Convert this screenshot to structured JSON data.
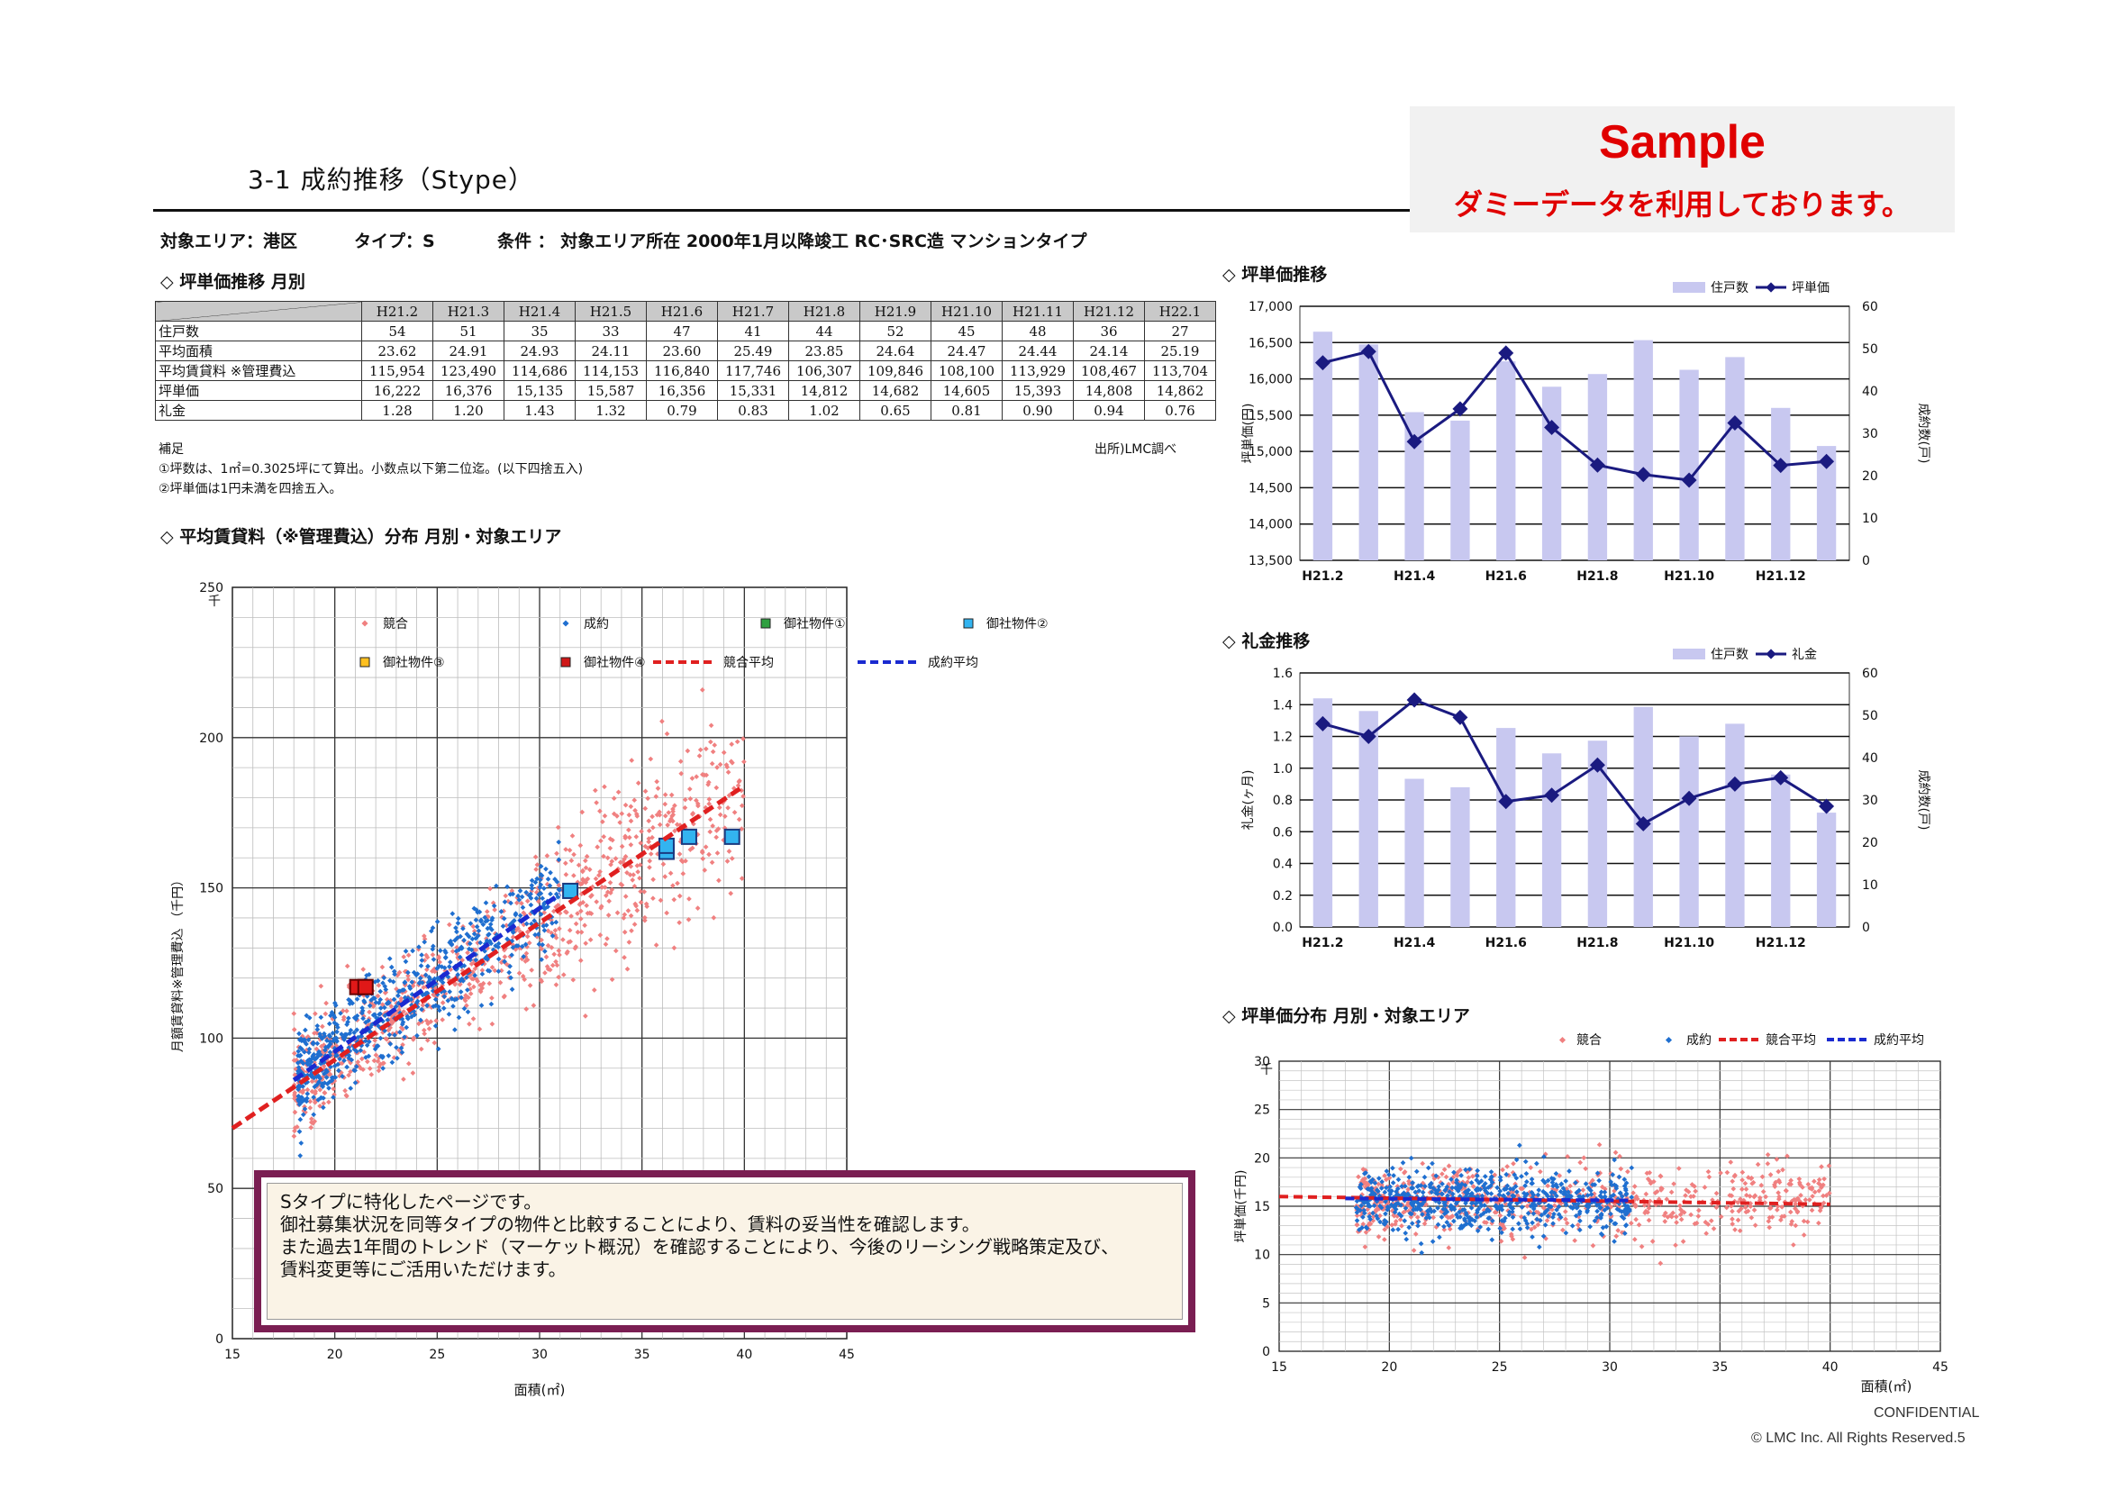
{
  "page": {
    "title": "3-1 成約推移（Stype）",
    "sample_label": "Sample",
    "sample_sub": "ダミーデータを利用しております。",
    "area": "対象エリア：港区",
    "type": "タイプ：S",
    "condition": "条件 ： 対象エリア所在 2000年1月以降竣工 RC･SRC造 マンションタイプ",
    "section_table": "◇ 坪単価推移 月別",
    "note_title": "補足",
    "note1": "①坪数は、1㎡=0.3025坪にて算出。小数点以下第二位迄。(以下四捨五入)",
    "note2": "②坪単価は1円未満を四捨五入。",
    "source": "出所)LMC調べ",
    "section_scatter": "◇ 平均賃貸料（※管理費込）分布 月別・対象エリア",
    "section_tsubo": "◇ 坪単価推移",
    "section_reikin": "◇ 礼金推移",
    "section_tsubo_dist": "◇ 坪単価分布 月別・対象エリア",
    "message": [
      "Sタイプに特化したページです。",
      "御社募集状況を同等タイプの物件と比較することにより、賃料の妥当性を確認します。",
      "また過去1年間のトレンド（マーケット概況）を確認することにより、今後のリーシング戦略策定及び、",
      "賃料変更等にご活用いただけます。"
    ],
    "confidential": "CONFIDENTIAL",
    "copyright": "© LMC Inc. All Rights Reserved.5"
  },
  "table": {
    "columns": [
      "H21.2",
      "H21.3",
      "H21.4",
      "H21.5",
      "H21.6",
      "H21.7",
      "H21.8",
      "H21.9",
      "H21.10",
      "H21.11",
      "H21.12",
      "H22.1"
    ],
    "rows": [
      {
        "label": "住戸数",
        "values": [
          "54",
          "51",
          "35",
          "33",
          "47",
          "41",
          "44",
          "52",
          "45",
          "48",
          "36",
          "27"
        ]
      },
      {
        "label": "平均面積",
        "values": [
          "23.62",
          "24.91",
          "24.93",
          "24.11",
          "23.60",
          "25.49",
          "23.85",
          "24.64",
          "24.47",
          "24.44",
          "24.14",
          "25.19"
        ]
      },
      {
        "label": "平均賃貸料 ※管理費込",
        "values": [
          "115,954",
          "123,490",
          "114,686",
          "114,153",
          "116,840",
          "117,746",
          "106,307",
          "109,846",
          "108,100",
          "113,929",
          "108,467",
          "113,704"
        ]
      },
      {
        "label": "坪単価",
        "values": [
          "16,222",
          "16,376",
          "15,135",
          "15,587",
          "16,356",
          "15,331",
          "14,812",
          "14,682",
          "14,605",
          "15,393",
          "14,808",
          "14,862"
        ]
      },
      {
        "label": "礼金",
        "values": [
          "1.28",
          "1.20",
          "1.43",
          "1.32",
          "0.79",
          "0.83",
          "1.02",
          "0.65",
          "0.81",
          "0.90",
          "0.94",
          "0.76"
        ]
      }
    ]
  },
  "chart_data": [
    {
      "id": "rent_scatter",
      "type": "scatter",
      "xlabel": "面積(㎡)",
      "ylabel": "月額賃貸料※管理費込 （千円）",
      "y_unit": "千",
      "xlim": [
        15,
        45
      ],
      "ylim": [
        0,
        250
      ],
      "x_ticks": [
        15,
        20,
        25,
        30,
        35,
        40,
        45
      ],
      "y_ticks": [
        0,
        50,
        100,
        150,
        200,
        250
      ],
      "grid": true,
      "legend": [
        "競合",
        "成約",
        "御社物件①",
        "御社物件②",
        "御社物件③",
        "御社物件④",
        "競合平均",
        "成約平均"
      ],
      "series": [
        {
          "name": "競合",
          "color": "#f08080",
          "points": "dense cloud (representative)"
        },
        {
          "name": "成約",
          "color": "#1f6fd0",
          "points": "dense cloud (representative)"
        },
        {
          "name": "御社物件②",
          "color": "#33b4f0",
          "points": [
            [
              31.5,
              149
            ],
            [
              36.2,
              162
            ],
            [
              36.2,
              164
            ],
            [
              37.3,
              167
            ],
            [
              39.4,
              167
            ]
          ]
        },
        {
          "name": "御社物件④",
          "color": "#e01818",
          "points": [
            [
              21.1,
              117
            ],
            [
              21.5,
              117
            ]
          ]
        },
        {
          "name": "競合平均",
          "color": "#e02020",
          "line": [
            [
              15,
              70
            ],
            [
              40,
              184
            ]
          ]
        },
        {
          "name": "成約平均",
          "color": "#1a2ad0",
          "line": [
            [
              18,
              86
            ],
            [
              31,
              148
            ]
          ]
        }
      ]
    },
    {
      "id": "tsubo_trend",
      "type": "bar",
      "categories": [
        "H21.2",
        "H21.3",
        "H21.4",
        "H21.5",
        "H21.6",
        "H21.7",
        "H21.8",
        "H21.9",
        "H21.10",
        "H21.11",
        "H21.12",
        "H22.1"
      ],
      "x_tick_labels": [
        "H21.2",
        "H21.4",
        "H21.6",
        "H21.8",
        "H21.10",
        "H21.12"
      ],
      "ylabel": "坪単価(円)",
      "y2label": "成約数(戸)",
      "ylim": [
        13500,
        17000
      ],
      "y_ticks": [
        "13,500",
        "14,000",
        "14,500",
        "15,000",
        "15,500",
        "16,000",
        "16,500",
        "17,000"
      ],
      "y2lim": [
        0,
        60
      ],
      "y2_ticks": [
        0,
        10,
        20,
        30,
        40,
        50,
        60
      ],
      "legend": [
        "住戸数",
        "坪単価"
      ],
      "series": [
        {
          "name": "住戸数",
          "axis": "right",
          "kind": "bar",
          "color": "#c8c8f0",
          "values": [
            54,
            51,
            35,
            33,
            47,
            41,
            44,
            52,
            45,
            48,
            36,
            27
          ]
        },
        {
          "name": "坪単価",
          "axis": "left",
          "kind": "line",
          "color": "#1a1a80",
          "values": [
            16222,
            16376,
            15135,
            15587,
            16356,
            15331,
            14812,
            14682,
            14605,
            15393,
            14808,
            14862
          ]
        }
      ]
    },
    {
      "id": "reikin_trend",
      "type": "bar",
      "categories": [
        "H21.2",
        "H21.3",
        "H21.4",
        "H21.5",
        "H21.6",
        "H21.7",
        "H21.8",
        "H21.9",
        "H21.10",
        "H21.11",
        "H21.12",
        "H22.1"
      ],
      "x_tick_labels": [
        "H21.2",
        "H21.4",
        "H21.6",
        "H21.8",
        "H21.10",
        "H21.12"
      ],
      "ylabel": "礼金(ヶ月)",
      "y2label": "成約数(戸)",
      "ylim": [
        0,
        1.6
      ],
      "y_ticks": [
        "0.0",
        "0.2",
        "0.4",
        "0.6",
        "0.8",
        "1.0",
        "1.2",
        "1.4",
        "1.6"
      ],
      "y2lim": [
        0,
        60
      ],
      "y2_ticks": [
        0,
        10,
        20,
        30,
        40,
        50,
        60
      ],
      "legend": [
        "住戸数",
        "礼金"
      ],
      "series": [
        {
          "name": "住戸数",
          "axis": "right",
          "kind": "bar",
          "color": "#c8c8f0",
          "values": [
            54,
            51,
            35,
            33,
            47,
            41,
            44,
            52,
            45,
            48,
            36,
            27
          ]
        },
        {
          "name": "礼金",
          "axis": "left",
          "kind": "line",
          "color": "#1a1a80",
          "values": [
            1.28,
            1.2,
            1.43,
            1.32,
            0.79,
            0.83,
            1.02,
            0.65,
            0.81,
            0.9,
            0.94,
            0.76
          ]
        }
      ]
    },
    {
      "id": "tsubo_scatter",
      "type": "scatter",
      "xlabel": "面積(㎡)",
      "ylabel": "坪単価(千円)",
      "y_unit": "千",
      "xlim": [
        15,
        45
      ],
      "ylim": [
        0,
        30
      ],
      "x_ticks": [
        15,
        20,
        25,
        30,
        35,
        40,
        45
      ],
      "y_ticks": [
        0,
        5,
        10,
        15,
        20,
        25,
        30
      ],
      "legend": [
        "競合",
        "成約",
        "競合平均",
        "成約平均"
      ],
      "series": [
        {
          "name": "競合",
          "color": "#f08080",
          "points": "dense cloud (representative)"
        },
        {
          "name": "成約",
          "color": "#1f6fd0",
          "points": "dense cloud (representative)"
        },
        {
          "name": "競合平均",
          "color": "#e02020",
          "line": [
            [
              15,
              16.0
            ],
            [
              40,
              15.2
            ]
          ]
        },
        {
          "name": "成約平均",
          "color": "#1a2ad0",
          "line": [
            [
              18,
              15.8
            ],
            [
              31,
              15.6
            ]
          ]
        }
      ]
    }
  ]
}
